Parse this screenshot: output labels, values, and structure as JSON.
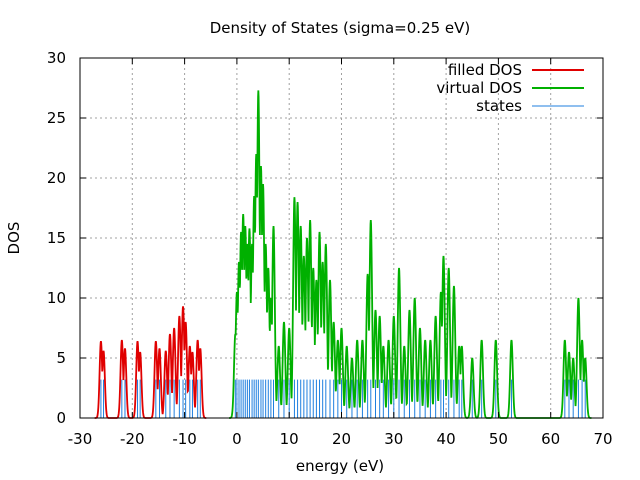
{
  "chart_data": {
    "type": "line",
    "title": "Density of States (sigma=0.25 eV)",
    "xlabel": "energy (eV)",
    "ylabel": "DOS",
    "xlim": [
      -30,
      70
    ],
    "ylim": [
      0,
      30
    ],
    "xticks": [
      -30,
      -20,
      -10,
      0,
      10,
      20,
      30,
      40,
      50,
      60,
      70
    ],
    "yticks": [
      0,
      5,
      10,
      15,
      20,
      25,
      30
    ],
    "grid": true,
    "legend_position": "top-right",
    "legend": [
      "filled DOS",
      "virtual DOS",
      "states"
    ],
    "colors": {
      "filled": "#e00000",
      "virtual": "#00b000",
      "states": "#1f7fdf"
    },
    "state_height": 3.2,
    "series": [
      {
        "name": "filled DOS",
        "peaks": [
          [
            -26.0,
            6.4
          ],
          [
            -25.5,
            5.6
          ],
          [
            -22.0,
            6.5
          ],
          [
            -21.4,
            5.8
          ],
          [
            -19.0,
            6.4
          ],
          [
            -18.5,
            5.5
          ],
          [
            -15.5,
            6.4
          ],
          [
            -14.8,
            5.8
          ],
          [
            -13.6,
            5.6
          ],
          [
            -12.8,
            7.0
          ],
          [
            -12.0,
            7.5
          ],
          [
            -11.0,
            8.5
          ],
          [
            -10.3,
            9.3
          ],
          [
            -9.8,
            8.0
          ],
          [
            -9.0,
            6.0
          ],
          [
            -8.5,
            5.5
          ],
          [
            -7.5,
            6.5
          ],
          [
            -7.0,
            5.8
          ]
        ]
      },
      {
        "name": "virtual DOS",
        "peaks": [
          [
            -0.3,
            7.0
          ],
          [
            0.0,
            10.5
          ],
          [
            0.4,
            13.0
          ],
          [
            0.8,
            15.5
          ],
          [
            1.2,
            17.0
          ],
          [
            1.6,
            16.0
          ],
          [
            2.0,
            14.5
          ],
          [
            2.4,
            15.8
          ],
          [
            2.9,
            14.5
          ],
          [
            3.3,
            18.5
          ],
          [
            3.7,
            22.0
          ],
          [
            4.1,
            27.3
          ],
          [
            4.6,
            21.0
          ],
          [
            5.0,
            19.5
          ],
          [
            5.5,
            14.5
          ],
          [
            6.0,
            12.5
          ],
          [
            6.5,
            10.0
          ],
          [
            7.0,
            16.0
          ],
          [
            8.0,
            6.0
          ],
          [
            9.0,
            8.0
          ],
          [
            10.0,
            7.5
          ],
          [
            11.0,
            18.4
          ],
          [
            11.6,
            18.0
          ],
          [
            12.2,
            16.0
          ],
          [
            12.8,
            13.5
          ],
          [
            13.4,
            15.0
          ],
          [
            14.0,
            16.5
          ],
          [
            14.6,
            12.5
          ],
          [
            15.2,
            11.5
          ],
          [
            15.8,
            15.5
          ],
          [
            16.4,
            13.0
          ],
          [
            17.0,
            14.5
          ],
          [
            17.8,
            11.5
          ],
          [
            18.5,
            8.0
          ],
          [
            19.3,
            6.5
          ],
          [
            20.0,
            7.5
          ],
          [
            21.0,
            6.0
          ],
          [
            22.0,
            5.0
          ],
          [
            23.0,
            6.5
          ],
          [
            24.0,
            6.5
          ],
          [
            25.0,
            12.0
          ],
          [
            25.6,
            16.5
          ],
          [
            26.5,
            9.0
          ],
          [
            27.3,
            8.5
          ],
          [
            28.0,
            6.0
          ],
          [
            29.0,
            6.5
          ],
          [
            30.0,
            8.5
          ],
          [
            31.0,
            12.5
          ],
          [
            32.0,
            6.0
          ],
          [
            33.0,
            9.0
          ],
          [
            34.0,
            10.0
          ],
          [
            35.0,
            7.5
          ],
          [
            36.0,
            6.5
          ],
          [
            37.0,
            6.5
          ],
          [
            38.0,
            8.5
          ],
          [
            39.0,
            10.5
          ],
          [
            39.5,
            13.5
          ],
          [
            40.5,
            12.5
          ],
          [
            41.5,
            11.0
          ],
          [
            42.5,
            6.0
          ],
          [
            43.0,
            6.0
          ],
          [
            45.0,
            5.0
          ],
          [
            46.8,
            6.5
          ],
          [
            49.5,
            6.5
          ],
          [
            52.5,
            6.5
          ],
          [
            62.7,
            6.5
          ],
          [
            63.5,
            5.5
          ],
          [
            64.3,
            5.0
          ],
          [
            65.3,
            10.0
          ],
          [
            66.0,
            6.5
          ],
          [
            66.6,
            5.0
          ]
        ]
      },
      {
        "name": "states",
        "energies": [
          -26.0,
          -25.5,
          -22.0,
          -21.4,
          -19.0,
          -18.5,
          -15.5,
          -14.8,
          -13.6,
          -12.8,
          -12.0,
          -11.0,
          -10.3,
          -9.8,
          -9.0,
          -8.5,
          -7.5,
          -7.0,
          -0.3,
          0.0,
          0.4,
          0.8,
          1.2,
          1.6,
          2.0,
          2.4,
          2.9,
          3.3,
          3.7,
          4.1,
          4.6,
          5.0,
          5.5,
          6.0,
          6.5,
          7.0,
          8.0,
          9.0,
          10.0,
          11.0,
          11.6,
          12.2,
          12.8,
          13.4,
          14.0,
          14.6,
          15.2,
          15.8,
          16.4,
          17.0,
          17.8,
          18.5,
          19.3,
          20.0,
          21.0,
          22.0,
          23.0,
          24.0,
          25.0,
          25.6,
          26.5,
          27.3,
          28.0,
          29.0,
          30.0,
          31.0,
          32.0,
          33.0,
          34.0,
          35.0,
          36.0,
          37.0,
          38.0,
          39.0,
          39.5,
          40.5,
          41.5,
          42.5,
          43.0,
          45.0,
          46.8,
          49.5,
          52.5,
          62.7,
          63.5,
          64.3,
          65.3,
          66.0,
          66.6
        ]
      }
    ]
  }
}
